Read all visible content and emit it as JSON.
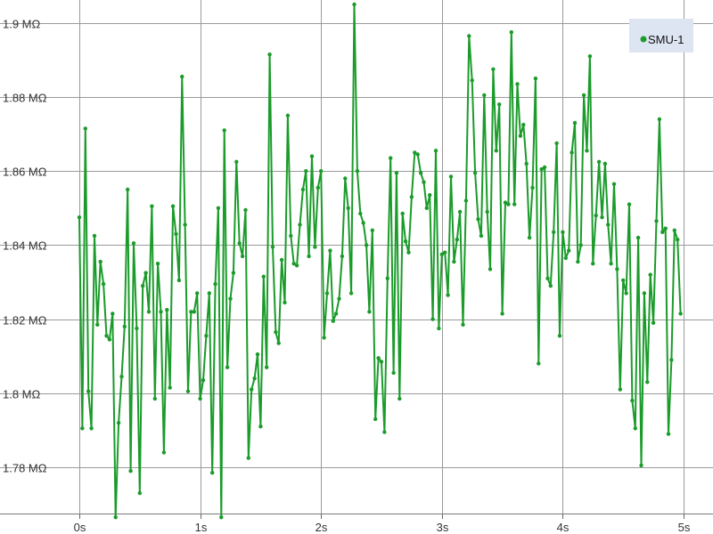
{
  "chart_data": {
    "type": "line",
    "title": "",
    "xlabel": "",
    "ylabel": "",
    "xlim": [
      0,
      5
    ],
    "ylim": [
      1.7675,
      1.905
    ],
    "grid": true,
    "legend_position": "top-right",
    "x_ticks": [
      "0s",
      "1s",
      "2s",
      "3s",
      "4s",
      "5s"
    ],
    "y_ticks": [
      "1.78 MΩ",
      "1.8 MΩ",
      "1.82 MΩ",
      "1.84 MΩ",
      "1.86 MΩ",
      "1.88 MΩ",
      "1.9 MΩ"
    ],
    "series": [
      {
        "name": "SMU-1",
        "color": "#1a9b2a",
        "x_start": 0,
        "x_step": 0.025,
        "y": [
          1.8475,
          1.7905,
          1.8715,
          1.8005,
          1.7905,
          1.8425,
          1.8185,
          1.8355,
          1.8295,
          1.8155,
          1.8145,
          1.8215,
          1.7665,
          1.792,
          1.8045,
          1.818,
          1.855,
          1.779,
          1.8405,
          1.8175,
          1.773,
          1.829,
          1.8325,
          1.822,
          1.8505,
          1.7985,
          1.835,
          1.822,
          1.784,
          1.8225,
          1.8015,
          1.8505,
          1.843,
          1.8305,
          1.8855,
          1.8455,
          1.8005,
          1.822,
          1.822,
          1.827,
          1.7985,
          1.8035,
          1.8155,
          1.827,
          1.7785,
          1.8295,
          1.85,
          1.7665,
          1.871,
          1.807,
          1.8255,
          1.8325,
          1.8625,
          1.8405,
          1.837,
          1.8495,
          1.7825,
          1.801,
          1.804,
          1.8105,
          1.791,
          1.8315,
          1.807,
          1.8915,
          1.8395,
          1.8165,
          1.8135,
          1.836,
          1.8245,
          1.875,
          1.8425,
          1.835,
          1.8345,
          1.8455,
          1.855,
          1.86,
          1.837,
          1.864,
          1.8395,
          1.8555,
          1.86,
          1.815,
          1.827,
          1.8385,
          1.8195,
          1.8215,
          1.8255,
          1.837,
          1.858,
          1.85,
          1.827,
          1.905,
          1.86,
          1.8485,
          1.846,
          1.84,
          1.822,
          1.844,
          1.793,
          1.8095,
          1.8085,
          1.7895,
          1.831,
          1.8635,
          1.8055,
          1.8595,
          1.7985,
          1.8485,
          1.841,
          1.838,
          1.853,
          1.865,
          1.8645,
          1.8595,
          1.857,
          1.85,
          1.8535,
          1.82,
          1.8655,
          1.8175,
          1.8375,
          1.838,
          1.8265,
          1.8585,
          1.8355,
          1.8415,
          1.849,
          1.8185,
          1.852,
          1.8965,
          1.8845,
          1.8595,
          1.847,
          1.8425,
          1.8805,
          1.849,
          1.8335,
          1.8875,
          1.8655,
          1.878,
          1.8215,
          1.8515,
          1.851,
          1.8975,
          1.851,
          1.8835,
          1.8695,
          1.8725,
          1.862,
          1.842,
          1.8555,
          1.885,
          1.808,
          1.8605,
          1.861,
          1.831,
          1.829,
          1.8435,
          1.8675,
          1.8155,
          1.8435,
          1.8365,
          1.8385,
          1.865,
          1.873,
          1.8355,
          1.84,
          1.8805,
          1.8655,
          1.891,
          1.835,
          1.848,
          1.8625,
          1.8475,
          1.862,
          1.8455,
          1.835,
          1.8565,
          1.8335,
          1.801,
          1.8305,
          1.827,
          1.851,
          1.798,
          1.7905,
          1.842,
          1.7805,
          1.827,
          1.803,
          1.832,
          1.819,
          1.8465,
          1.874,
          1.8435,
          1.8445,
          1.789,
          1.809,
          1.844,
          1.8415,
          1.8215
        ]
      }
    ]
  }
}
